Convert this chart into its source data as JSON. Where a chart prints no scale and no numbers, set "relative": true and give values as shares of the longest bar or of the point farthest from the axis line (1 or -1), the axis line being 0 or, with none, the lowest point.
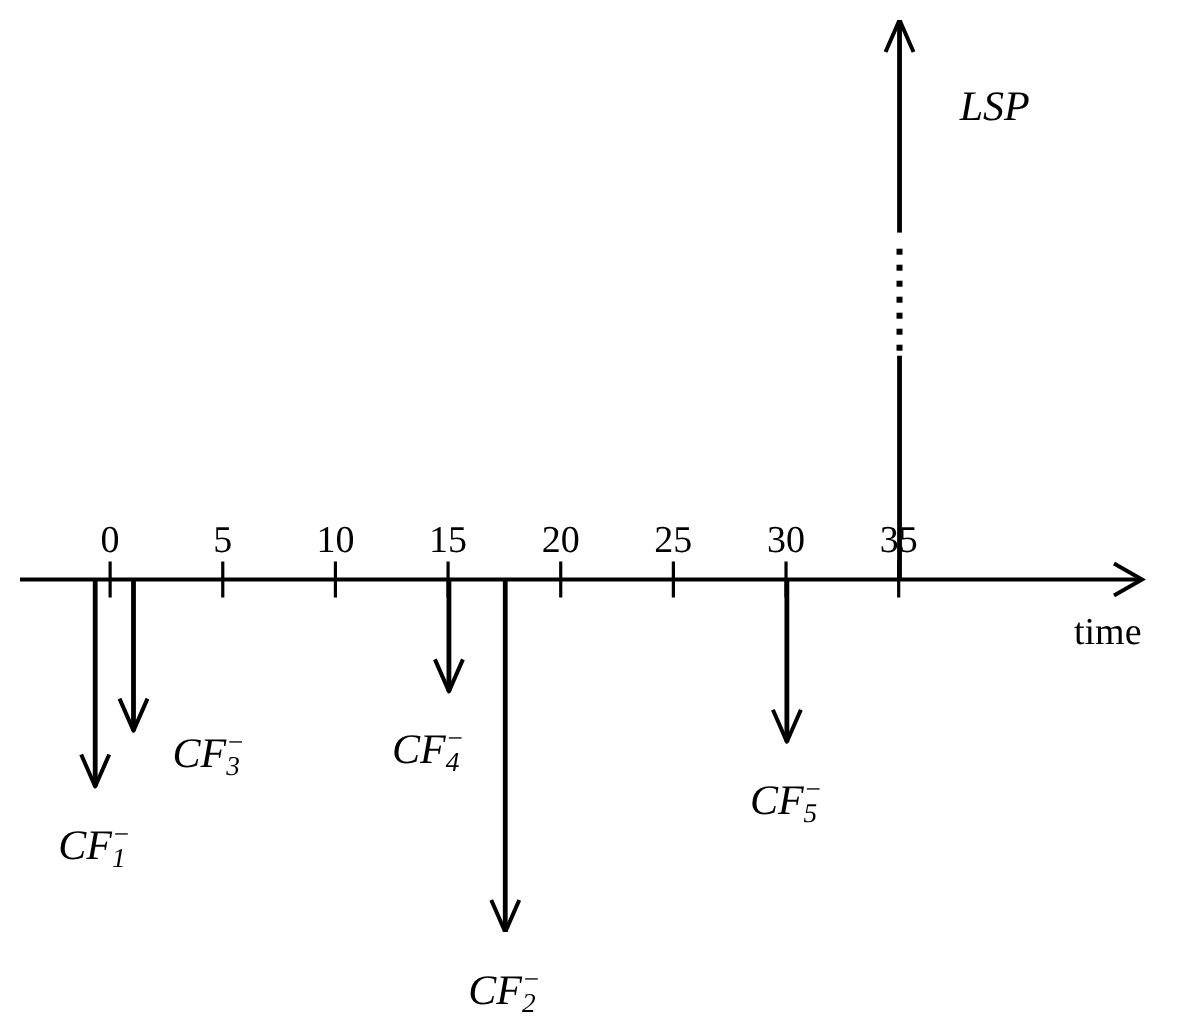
{
  "chart_data": {
    "type": "bar",
    "relative": true,
    "x": [
      -0.7,
      1,
      15,
      17.5,
      30,
      35
    ],
    "values": [
      -0.37,
      -0.27,
      -0.2,
      -0.63,
      -0.29,
      1
    ],
    "color": "#000000",
    "xlim": [
      -4,
      45.8
    ],
    "xticks": [
      0,
      5,
      10,
      15,
      20,
      25,
      30,
      35
    ],
    "xlabel": "time",
    "annotations": [
      {
        "text": "CF$_{1}$$^{−}$",
        "x": -0.7,
        "y": -0.37
      },
      {
        "text": "CF$_{3}$$^{−}$",
        "x": 1,
        "y": -0.27
      },
      {
        "text": "CF$_{4}$$^{−}$",
        "x": 15,
        "y": -0.2
      },
      {
        "text": "CF$_{2}$$^{−}$",
        "x": 17.5,
        "y": -0.63
      },
      {
        "text": "CF$_{5}$$^{−}$",
        "x": 30,
        "y": -0.29
      },
      {
        "text": "LSP",
        "x": 35,
        "y": 1
      }
    ]
  }
}
